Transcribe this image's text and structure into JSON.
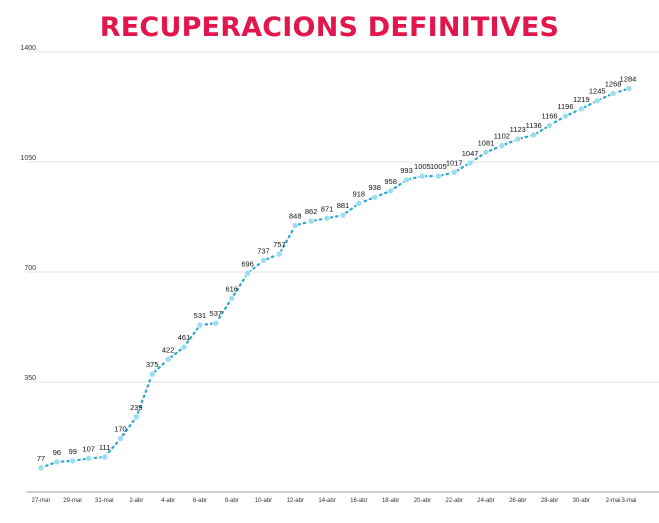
{
  "chart_data": {
    "type": "line",
    "title": "RECUPERACIONS DEFINITIVES",
    "xlabel": "",
    "ylabel": "",
    "ylim": [
      0,
      1400
    ],
    "yticks": [
      "350",
      "700",
      "1050",
      "1400"
    ],
    "grid": true,
    "accent_color": "#e2154c",
    "line_color": "#29a9cf",
    "marker_color": "#9fdcf0",
    "x": [
      "27-mar",
      "28-mar",
      "29-mar",
      "30-mar",
      "31-mar",
      "1-abr",
      "2-abr",
      "3-abr",
      "4-abr",
      "5-abr",
      "6-abr",
      "7-abr",
      "8-abr",
      "9-abr",
      "10-abr",
      "11-abr",
      "12-abr",
      "13-abr",
      "14-abr",
      "15-abr",
      "16-abr",
      "17-abr",
      "18-abr",
      "19-abr",
      "20-abr",
      "21-abr",
      "22-abr",
      "23-abr",
      "24-abr",
      "25-abr",
      "26-abr",
      "27-abr",
      "28-abr",
      "29-abr",
      "30-abr",
      "1-mai",
      "2-mai",
      "3-mai"
    ],
    "xtick_labels": [
      "27-mar",
      "29-mar",
      "31-mar",
      "2-abr",
      "4-abr",
      "6-abr",
      "8-abr",
      "10-abr",
      "12-abr",
      "14-abr",
      "16-abr",
      "18-abr",
      "20-abr",
      "22-abr",
      "24-abr",
      "26-abr",
      "28-abr",
      "30-abr",
      "2-mai",
      "3-mai"
    ],
    "values": [
      77,
      96,
      99,
      107,
      111,
      170,
      239,
      375,
      422,
      461,
      531,
      537,
      616,
      696,
      737,
      757,
      848,
      862,
      871,
      881,
      918,
      938,
      958,
      993,
      1005,
      1005,
      1017,
      1047,
      1081,
      1102,
      1123,
      1136,
      1166,
      1196,
      1219,
      1245,
      1268,
      1284
    ]
  }
}
